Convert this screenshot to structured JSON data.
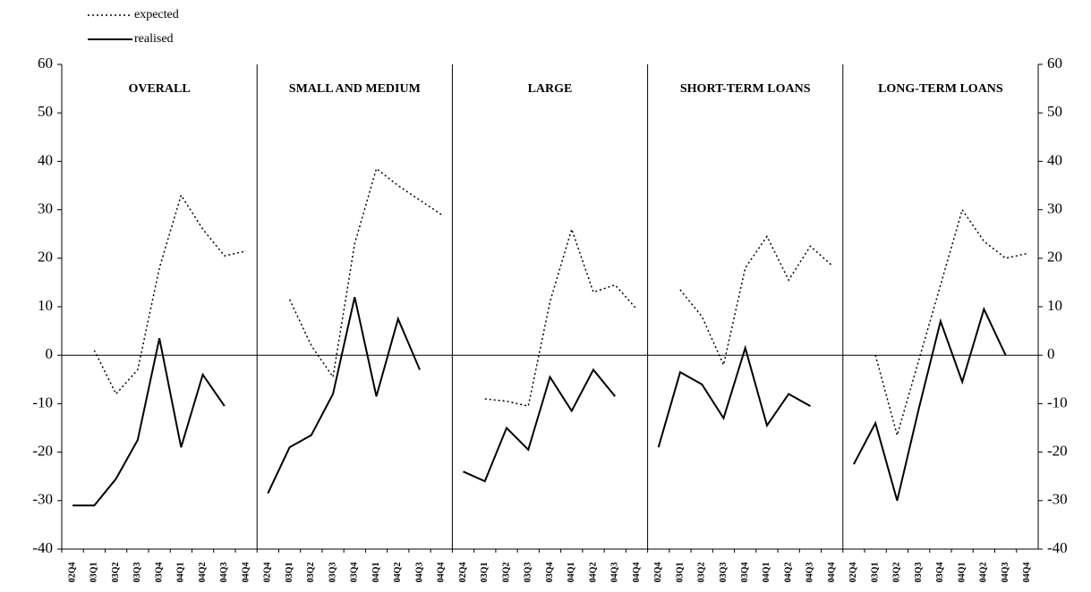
{
  "chart_data": {
    "type": "line",
    "categories": [
      "02Q4",
      "03Q1",
      "03Q2",
      "03Q3",
      "03Q4",
      "04Q1",
      "04Q2",
      "04Q3",
      "04Q4"
    ],
    "panels": [
      "OVERALL",
      "SMALL AND MEDIUM",
      "LARGE",
      "SHORT-TERM LOANS",
      "LONG-TERM LOANS"
    ],
    "series": [
      {
        "name": "expected",
        "color": "#000000",
        "dash": "2,3",
        "values": [
          [
            null,
            1,
            -8,
            -3,
            18,
            33,
            26,
            20.5,
            21.5
          ],
          [
            null,
            11.5,
            2,
            -4.5,
            23,
            38.5,
            35,
            32,
            29
          ],
          [
            null,
            -9,
            -9.5,
            -10.5,
            11,
            26,
            13,
            14.5,
            9.5
          ],
          [
            null,
            13.5,
            8,
            -2,
            18,
            24.5,
            15.5,
            22.5,
            18.5
          ],
          [
            null,
            0,
            -16.5,
            -1,
            14.5,
            30,
            23.5,
            20,
            21
          ]
        ]
      },
      {
        "name": "realised",
        "color": "#000000",
        "dash": "none",
        "values": [
          [
            -31,
            -31,
            -25.5,
            -17.5,
            3.5,
            -19,
            -4,
            -10.5,
            null
          ],
          [
            -28.5,
            -19,
            -16.5,
            -8,
            12,
            -8.5,
            7.5,
            -3,
            null
          ],
          [
            -24,
            -26,
            -15,
            -19.5,
            -4.5,
            -11.5,
            -3,
            -8.5,
            null
          ],
          [
            -19,
            -3.5,
            -6,
            -13,
            1.5,
            -14.5,
            -8,
            -10.5,
            null
          ],
          [
            -22.5,
            -14,
            -30,
            -11,
            7,
            -5.5,
            9.5,
            0,
            null
          ]
        ]
      }
    ],
    "ylim": [
      -40,
      60
    ],
    "yticks": [
      -40,
      -30,
      -20,
      -10,
      0,
      10,
      20,
      30,
      40,
      50,
      60
    ]
  }
}
